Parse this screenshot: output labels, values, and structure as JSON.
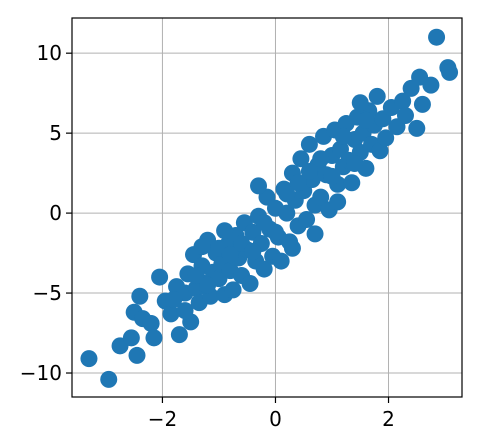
{
  "chart_data": {
    "type": "scatter",
    "title": "",
    "xlabel": "",
    "ylabel": "",
    "xlim": [
      -3.6,
      3.3
    ],
    "ylim": [
      -11.5,
      12.2
    ],
    "grid": true,
    "xticks": [
      -2,
      0,
      2
    ],
    "xtick_labels": [
      "−2",
      "0",
      "2"
    ],
    "yticks": [
      -10,
      -5,
      0,
      5,
      10
    ],
    "ytick_labels": [
      "−10",
      "−5",
      "0",
      "5",
      "10"
    ],
    "series": [
      {
        "color": "#1f77b4",
        "points": [
          [
            -3.3,
            -9.1
          ],
          [
            -2.95,
            -10.4
          ],
          [
            -2.75,
            -8.3
          ],
          [
            -2.55,
            -7.8
          ],
          [
            -2.45,
            -8.9
          ],
          [
            -2.5,
            -6.2
          ],
          [
            -2.4,
            -5.2
          ],
          [
            -2.35,
            -6.6
          ],
          [
            -2.2,
            -6.9
          ],
          [
            -2.15,
            -7.8
          ],
          [
            -2.05,
            -4.0
          ],
          [
            -1.95,
            -5.5
          ],
          [
            -1.85,
            -6.3
          ],
          [
            -1.75,
            -4.6
          ],
          [
            -1.7,
            -7.6
          ],
          [
            -1.6,
            -5.0
          ],
          [
            -1.55,
            -3.8
          ],
          [
            -1.5,
            -6.8
          ],
          [
            -1.45,
            -2.6
          ],
          [
            -1.4,
            -4.7
          ],
          [
            -1.35,
            -5.6
          ],
          [
            -1.3,
            -3.3
          ],
          [
            -1.25,
            -4.4
          ],
          [
            -1.2,
            -1.7
          ],
          [
            -1.15,
            -5.2
          ],
          [
            -1.1,
            -3.7
          ],
          [
            -1.05,
            -2.5
          ],
          [
            -1.0,
            -4.1
          ],
          [
            -0.95,
            -3.2
          ],
          [
            -0.9,
            -5.1
          ],
          [
            -0.85,
            -2.0
          ],
          [
            -0.8,
            -3.6
          ],
          [
            -0.75,
            -4.8
          ],
          [
            -0.7,
            -1.4
          ],
          [
            -0.65,
            -2.8
          ],
          [
            -0.6,
            -3.9
          ],
          [
            -0.55,
            -0.6
          ],
          [
            -0.5,
            -2.3
          ],
          [
            -0.45,
            -4.4
          ],
          [
            -0.4,
            -1.2
          ],
          [
            -0.35,
            -3.0
          ],
          [
            -0.3,
            -0.2
          ],
          [
            -0.25,
            -1.9
          ],
          [
            -0.2,
            -3.5
          ],
          [
            -0.15,
            1.0
          ],
          [
            -0.1,
            -1.0
          ],
          [
            -0.05,
            -2.7
          ],
          [
            0.0,
            0.3
          ],
          [
            0.05,
            -1.5
          ],
          [
            0.1,
            -3.0
          ],
          [
            0.15,
            1.5
          ],
          [
            0.2,
            0.0
          ],
          [
            0.25,
            -1.8
          ],
          [
            0.3,
            2.5
          ],
          [
            0.35,
            0.8
          ],
          [
            0.4,
            -0.8
          ],
          [
            0.45,
            3.4
          ],
          [
            0.5,
            1.4
          ],
          [
            0.55,
            -0.4
          ],
          [
            0.6,
            4.3
          ],
          [
            0.65,
            2.1
          ],
          [
            0.7,
            0.5
          ],
          [
            0.75,
            3.0
          ],
          [
            0.8,
            1.0
          ],
          [
            0.85,
            4.8
          ],
          [
            0.9,
            2.4
          ],
          [
            0.95,
            0.2
          ],
          [
            1.0,
            3.6
          ],
          [
            1.05,
            5.2
          ],
          [
            1.1,
            1.8
          ],
          [
            1.15,
            4.0
          ],
          [
            1.2,
            2.9
          ],
          [
            1.25,
            5.6
          ],
          [
            1.3,
            3.3
          ],
          [
            1.35,
            1.9
          ],
          [
            1.4,
            4.6
          ],
          [
            1.45,
            6.0
          ],
          [
            1.5,
            3.8
          ],
          [
            1.55,
            5.0
          ],
          [
            1.6,
            2.8
          ],
          [
            1.65,
            6.4
          ],
          [
            1.7,
            4.3
          ],
          [
            1.75,
            5.5
          ],
          [
            1.8,
            7.3
          ],
          [
            1.85,
            3.9
          ],
          [
            1.9,
            5.9
          ],
          [
            1.95,
            4.7
          ],
          [
            2.05,
            6.6
          ],
          [
            2.15,
            5.4
          ],
          [
            2.25,
            7.0
          ],
          [
            2.3,
            6.1
          ],
          [
            2.4,
            7.8
          ],
          [
            2.5,
            5.3
          ],
          [
            2.55,
            8.5
          ],
          [
            2.6,
            6.8
          ],
          [
            2.75,
            8.0
          ],
          [
            2.85,
            11.0
          ],
          [
            3.05,
            9.1
          ],
          [
            3.08,
            8.8
          ],
          [
            -1.8,
            -5.4
          ],
          [
            -1.6,
            -6.1
          ],
          [
            -1.4,
            -3.9
          ],
          [
            -1.2,
            -4.5
          ],
          [
            -1.0,
            -2.2
          ],
          [
            -0.8,
            -2.6
          ],
          [
            -0.6,
            -1.9
          ],
          [
            -0.4,
            -2.4
          ],
          [
            -0.2,
            -0.6
          ],
          [
            0.0,
            -1.2
          ],
          [
            0.2,
            1.2
          ],
          [
            0.4,
            1.9
          ],
          [
            0.6,
            2.6
          ],
          [
            0.8,
            3.4
          ],
          [
            1.0,
            2.3
          ],
          [
            1.2,
            4.8
          ],
          [
            1.4,
            3.1
          ],
          [
            1.6,
            5.8
          ],
          [
            -0.9,
            -1.1
          ],
          [
            0.3,
            -2.2
          ],
          [
            1.5,
            6.9
          ],
          [
            -0.3,
            1.7
          ],
          [
            0.7,
            -1.3
          ],
          [
            -1.3,
            -2.1
          ],
          [
            1.1,
            0.7
          ]
        ]
      }
    ]
  }
}
